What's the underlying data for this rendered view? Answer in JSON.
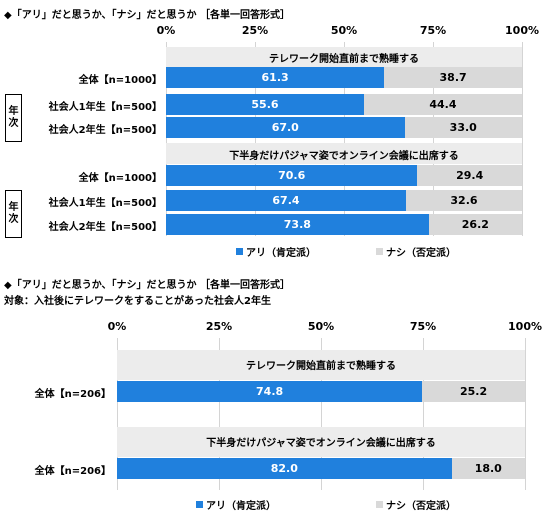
{
  "chart_data": [
    {
      "type": "bar",
      "stacked": true,
      "orientation": "horizontal",
      "title": "◆「アリ」だと思うか、「ナシ」だと思うか ［各単一回答形式］",
      "x_ticks": [
        "0%",
        "25%",
        "50%",
        "75%",
        "100%"
      ],
      "xlim": [
        0,
        100
      ],
      "grid": true,
      "legend": {
        "placement": "bottom",
        "items": [
          "アリ（肯定派）",
          "ナシ（否定派）"
        ]
      },
      "group_label": "年次",
      "groups": [
        {
          "caption": "テレワーク開始直前まで熟睡する",
          "rows": [
            {
              "label": "全体【n=1000】",
              "yes": 61.3,
              "no": 38.7
            },
            {
              "label": "社会人1年生【n=500】",
              "yes": 55.6,
              "no": 44.4
            },
            {
              "label": "社会人2年生【n=500】",
              "yes": 67.0,
              "no": 33.0
            }
          ]
        },
        {
          "caption": "下半身だけパジャマ姿でオンライン会議に出席する",
          "rows": [
            {
              "label": "全体【n=1000】",
              "yes": 70.6,
              "no": 29.4
            },
            {
              "label": "社会人1年生【n=500】",
              "yes": 67.4,
              "no": 32.6
            },
            {
              "label": "社会人2年生【n=500】",
              "yes": 73.8,
              "no": 26.2
            }
          ]
        }
      ]
    },
    {
      "type": "bar",
      "stacked": true,
      "orientation": "horizontal",
      "title": "◆「アリ」だと思うか、「ナシ」だと思うか ［各単一回答形式］",
      "subtitle": "対象：入社後にテレワークをすることがあった社会人2年生",
      "x_ticks": [
        "0%",
        "25%",
        "50%",
        "75%",
        "100%"
      ],
      "xlim": [
        0,
        100
      ],
      "grid": true,
      "legend": {
        "placement": "bottom",
        "items": [
          "アリ（肯定派）",
          "ナシ（否定派）"
        ]
      },
      "groups": [
        {
          "caption": "テレワーク開始直前まで熟睡する",
          "rows": [
            {
              "label": "全体【n=206】",
              "yes": 74.8,
              "no": 25.2
            }
          ]
        },
        {
          "caption": "下半身だけパジャマ姿でオンライン会議に出席する",
          "rows": [
            {
              "label": "全体【n=206】",
              "yes": 82.0,
              "no": 18.0
            }
          ]
        }
      ]
    }
  ],
  "colors": {
    "yes": "#2080dd",
    "no": "#d9d9d9",
    "band": "#ececec",
    "grid": "#d4d4d4"
  }
}
